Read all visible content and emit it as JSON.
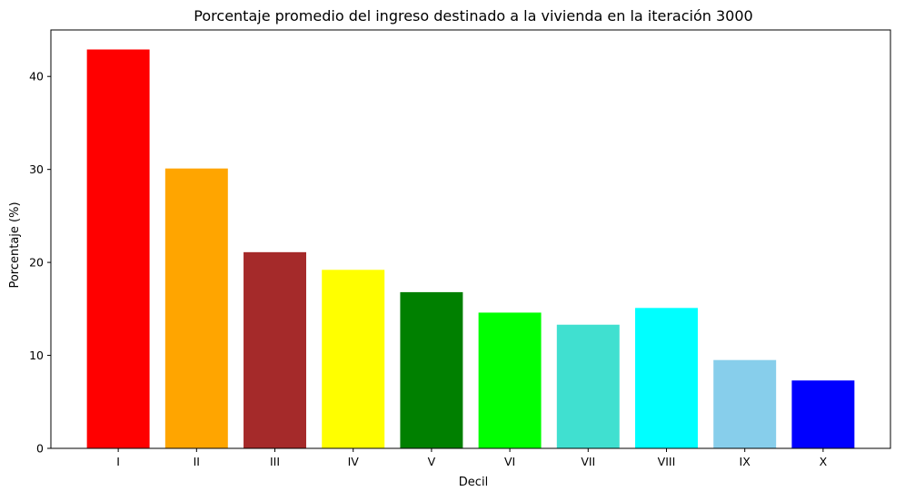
{
  "chart_data": {
    "type": "bar",
    "title": "Porcentaje promedio del ingreso destinado a la vivienda en la iteración 3000",
    "xlabel": "Decil",
    "ylabel": "Porcentaje (%)",
    "categories": [
      "I",
      "II",
      "III",
      "IV",
      "V",
      "VI",
      "VII",
      "VIII",
      "IX",
      "X"
    ],
    "values": [
      42.9,
      30.1,
      21.1,
      19.2,
      16.8,
      14.6,
      13.3,
      15.1,
      9.5,
      7.3
    ],
    "colors": [
      "#ff0000",
      "#ffa500",
      "#a52a2a",
      "#ffff00",
      "#008000",
      "#00ff00",
      "#40e0d0",
      "#00ffff",
      "#87ceeb",
      "#0000ff"
    ],
    "ylim": [
      0,
      45
    ],
    "yticks": [
      0,
      10,
      20,
      30,
      40
    ],
    "grid": false,
    "legend": "none"
  }
}
